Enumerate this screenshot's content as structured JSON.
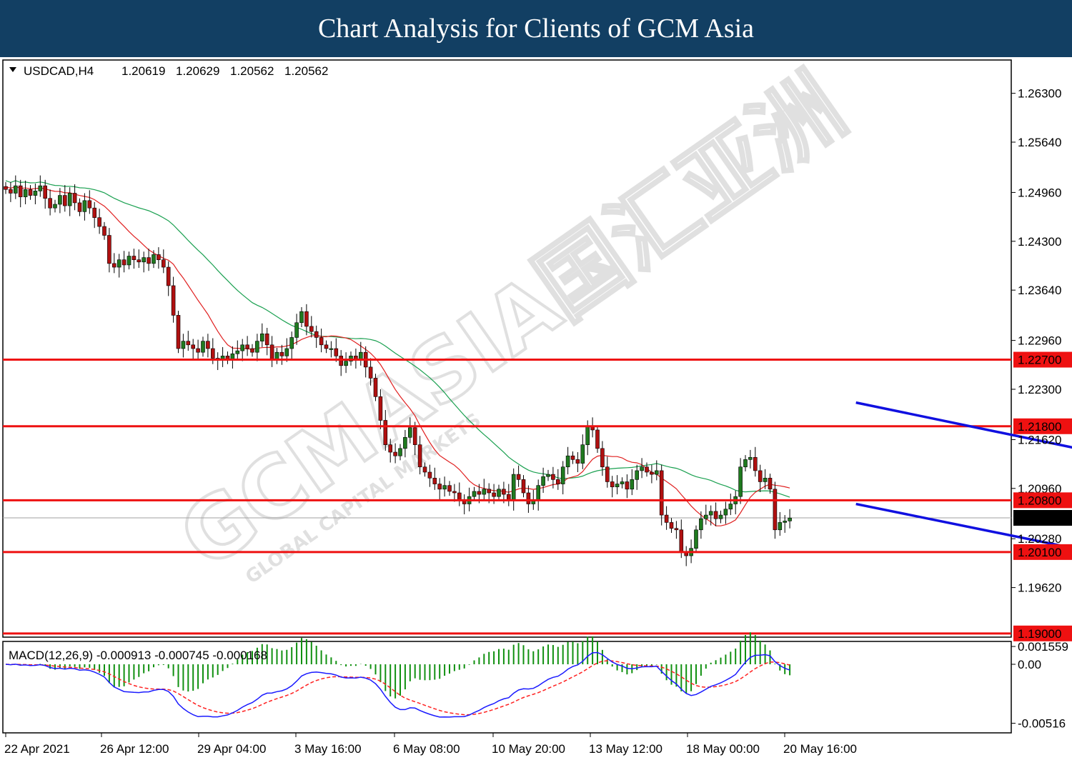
{
  "banner": {
    "title": "Chart Analysis for Clients of GCM Asia"
  },
  "watermark": {
    "brand": "GCMASIA",
    "sub": "GLOBAL CAPITAL MARKETS",
    "cn": "国汇亚洲"
  },
  "colors": {
    "bull": "#1f7a1f",
    "bear": "#b01010",
    "ma_fast": "#e02020",
    "ma_slow": "#1aa050",
    "channel": "#1010e0",
    "level": "#ee1111",
    "macd_line": "#1a1aff",
    "signal_line": "#ff2020",
    "hist": "#109010"
  },
  "chart_data": [
    {
      "type": "candlestick",
      "symbol_header": "USDCAD,H4",
      "ohlc_header": [
        "1.20619",
        "1.20629",
        "1.20562",
        "1.20562"
      ],
      "ylim": [
        1.1895,
        1.2675
      ],
      "y_ticks": [
        "1.26300",
        "1.25640",
        "1.24960",
        "1.24300",
        "1.23640",
        "1.22960",
        "1.22300",
        "1.21620",
        "1.20960",
        "1.20280",
        "1.19620"
      ],
      "x_ticks": [
        "22 Apr 2021",
        "26 Apr 12:00",
        "29 Apr 04:00",
        "3 May 16:00",
        "6 May 08:00",
        "10 May 20:00",
        "13 May 12:00",
        "18 May 00:00",
        "20 May 16:00"
      ],
      "levels": [
        {
          "label": "1.22700",
          "value": 1.227
        },
        {
          "label": "1.21800",
          "value": 1.218
        },
        {
          "label": "1.20800",
          "value": 1.208
        },
        {
          "label": "1.20100",
          "value": 1.201
        },
        {
          "label": "1.19000",
          "value": 1.19
        }
      ],
      "current_price": {
        "label": "1.20562",
        "value": 1.20562
      },
      "channel_upper": [
        [
          0.2115,
          1.2212
        ],
        [
          0.3062,
          1.2105
        ]
      ],
      "channel_lower": [
        [
          0.2115,
          1.2075
        ],
        [
          0.3062,
          1.197
        ]
      ],
      "candles_close": [
        1.25,
        1.2495,
        1.2505,
        1.249,
        1.25,
        1.2492,
        1.2498,
        1.2505,
        1.2488,
        1.2475,
        1.248,
        1.2492,
        1.2478,
        1.2495,
        1.2482,
        1.247,
        1.2485,
        1.2475,
        1.2462,
        1.245,
        1.2438,
        1.24,
        1.2395,
        1.2405,
        1.2398,
        1.241,
        1.2405,
        1.2402,
        1.2408,
        1.24,
        1.2412,
        1.2405,
        1.2395,
        1.237,
        1.233,
        1.2285,
        1.2295,
        1.229,
        1.2285,
        1.228,
        1.2295,
        1.2285,
        1.2272,
        1.227,
        1.2275,
        1.227,
        1.2278,
        1.2282,
        1.229,
        1.2285,
        1.228,
        1.2295,
        1.2305,
        1.229,
        1.227,
        1.228,
        1.2275,
        1.2285,
        1.23,
        1.232,
        1.2335,
        1.2315,
        1.2308,
        1.23,
        1.229,
        1.2285,
        1.2285,
        1.2275,
        1.2262,
        1.2268,
        1.2275,
        1.227,
        1.228,
        1.226,
        1.2245,
        1.222,
        1.2188,
        1.2155,
        1.2145,
        1.214,
        1.215,
        1.2165,
        1.2178,
        1.2155,
        1.2125,
        1.2118,
        1.211,
        1.2102,
        1.2095,
        1.21,
        1.2092,
        1.209,
        1.208,
        1.2075,
        1.2085,
        1.2092,
        1.2088,
        1.2095,
        1.209,
        1.2085,
        1.2095,
        1.2088,
        1.208,
        1.2115,
        1.2108,
        1.209,
        1.2075,
        1.208,
        1.21,
        1.2112,
        1.2115,
        1.2108,
        1.2102,
        1.2125,
        1.214,
        1.2135,
        1.213,
        1.2155,
        1.218,
        1.2175,
        1.215,
        1.2125,
        1.2105,
        1.2098,
        1.2102,
        1.2105,
        1.2095,
        1.2108,
        1.212,
        1.2125,
        1.2118,
        1.2115,
        1.212,
        1.206,
        1.205,
        1.2042,
        1.204,
        1.201,
        1.2005,
        1.2015,
        1.204,
        1.2055,
        1.206,
        1.2065,
        1.2055,
        1.206,
        1.2068,
        1.2075,
        1.2085,
        1.2125,
        1.2135,
        1.2138,
        1.212,
        1.2105,
        1.211,
        1.2095,
        1.204,
        1.205,
        1.2052,
        1.2056
      ]
    },
    {
      "type": "macd",
      "header": "MACD(12,26,9) -0.000913 -0.000745 -0.000168",
      "y_ticks": [
        "0.001559",
        "0.00",
        "-0.00516"
      ],
      "ylim": [
        -0.006,
        0.002
      ]
    }
  ]
}
